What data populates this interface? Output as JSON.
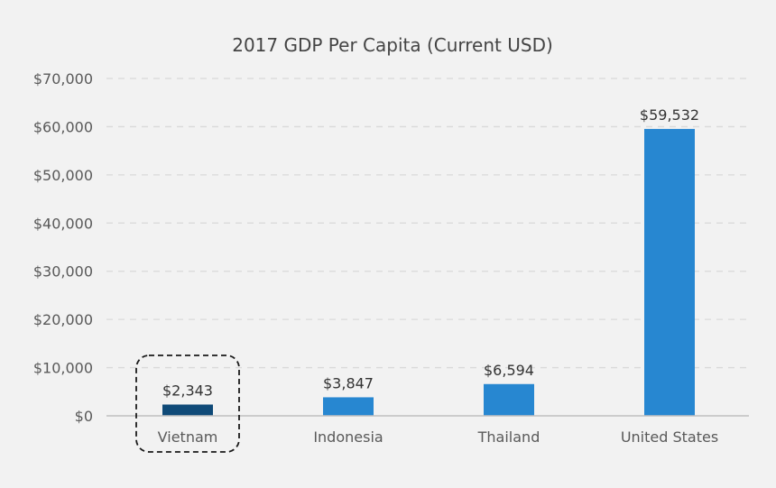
{
  "colors": {
    "background": "#f2f2f2",
    "bar": "#2787d1",
    "highlight_bar": "#0f4a78"
  },
  "chart_data": {
    "type": "bar",
    "title": "2017 GDP Per Capita (Current USD)",
    "xlabel": "",
    "ylabel": "",
    "categories": [
      "Vietnam",
      "Indonesia",
      "Thailand",
      "United States"
    ],
    "values": [
      2343,
      3847,
      6594,
      59532
    ],
    "data_labels": [
      "$2,343",
      "$3,847",
      "$6,594",
      "$59,532"
    ],
    "ylim": [
      0,
      70000
    ],
    "yticks": [
      0,
      10000,
      20000,
      30000,
      40000,
      50000,
      60000,
      70000
    ],
    "ytick_labels": [
      "$0",
      "$10,000",
      "$20,000",
      "$30,000",
      "$40,000",
      "$50,000",
      "$60,000",
      "$70,000"
    ],
    "grid": true,
    "highlighted_category": "Vietnam"
  }
}
